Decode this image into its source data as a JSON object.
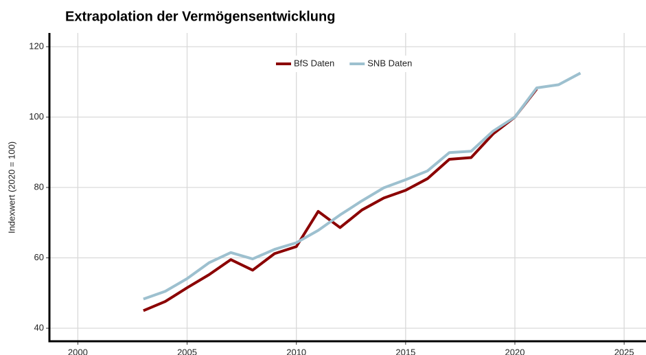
{
  "chart_data": {
    "type": "line",
    "title": "Extrapolation der Vermögensentwicklung",
    "y_label": "Indexwert (2020 = 100)",
    "x": [
      2003,
      2004,
      2005,
      2006,
      2007,
      2008,
      2009,
      2010,
      2011,
      2012,
      2013,
      2014,
      2015,
      2016,
      2017,
      2018,
      2019,
      2020,
      2021,
      2022,
      2023
    ],
    "series": [
      {
        "name": "BfS Daten",
        "color": "#8b0000",
        "values": [
          45,
          47.6,
          51.5,
          55.2,
          59.5,
          56.5,
          61.2,
          63.2,
          73.2,
          68.6,
          73.6,
          77,
          79.2,
          82.5,
          88,
          88.5,
          95.2,
          100,
          108,
          null,
          null
        ]
      },
      {
        "name": "SNB Daten",
        "color": "#9dc0cf",
        "values": [
          48.3,
          50.5,
          54.1,
          58.6,
          61.5,
          59.7,
          62.4,
          64.3,
          67.8,
          72.2,
          76.2,
          79.9,
          82.2,
          84.7,
          89.9,
          90.3,
          96,
          100,
          108.3,
          109.2,
          112.5
        ]
      }
    ],
    "xlim": [
      1998.7,
      2026
    ],
    "xticks": [
      2000,
      2005,
      2010,
      2015,
      2020,
      2025
    ],
    "ylim": [
      36.3,
      123.9
    ],
    "yticks": [
      40,
      60,
      80,
      100,
      120
    ],
    "grid": true,
    "legend": "top"
  }
}
